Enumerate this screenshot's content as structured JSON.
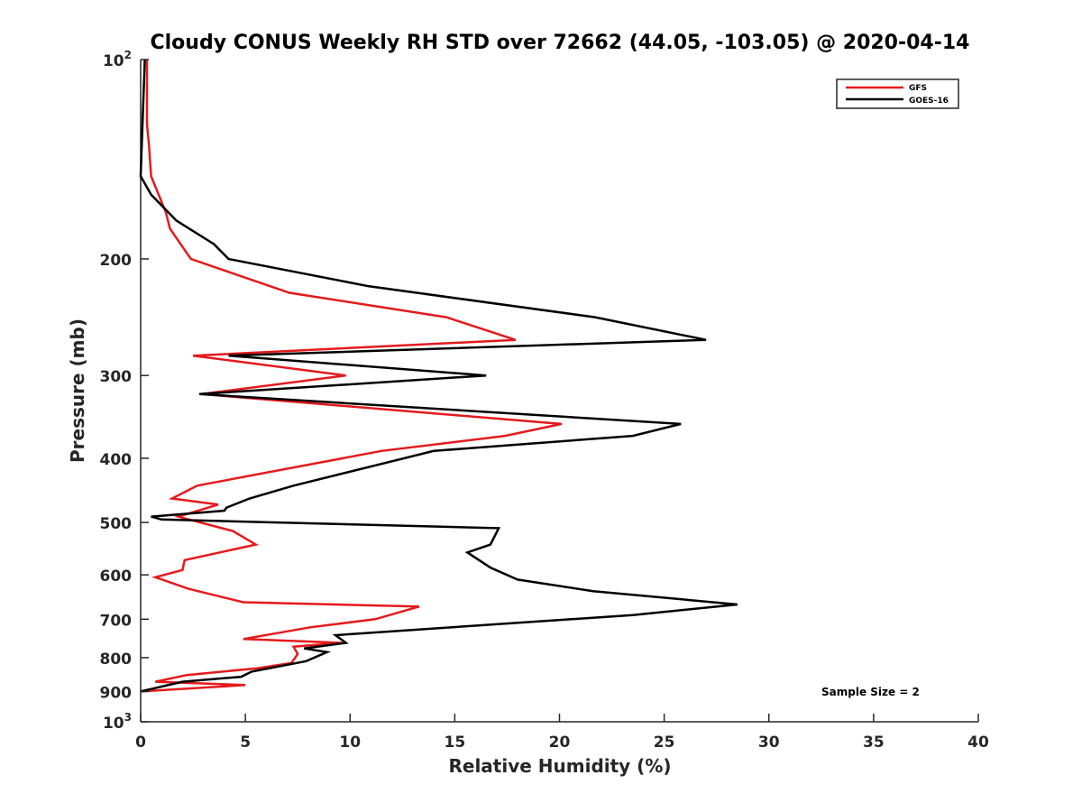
{
  "chart_data": {
    "type": "line",
    "title": "Cloudy CONUS Weekly RH STD over 72662 (44.05, -103.05) @ 2020-04-14",
    "xlabel": "Relative Humidity (%)",
    "ylabel": "Pressure (mb)",
    "xlim": [
      0,
      40
    ],
    "ylim": [
      100,
      1000
    ],
    "y_scale": "log",
    "y_reversed": true,
    "x_ticks": [
      "0",
      "5",
      "10",
      "15",
      "20",
      "25",
      "30",
      "35",
      "40"
    ],
    "y_ticks": [
      {
        "value": 100,
        "label": "10",
        "sup": "2"
      },
      {
        "value": 200,
        "label": "200",
        "sup": ""
      },
      {
        "value": 300,
        "label": "300",
        "sup": ""
      },
      {
        "value": 400,
        "label": "400",
        "sup": ""
      },
      {
        "value": 500,
        "label": "500",
        "sup": ""
      },
      {
        "value": 600,
        "label": "600",
        "sup": ""
      },
      {
        "value": 700,
        "label": "700",
        "sup": ""
      },
      {
        "value": 800,
        "label": "800",
        "sup": ""
      },
      {
        "value": 900,
        "label": "900",
        "sup": ""
      },
      {
        "value": 1000,
        "label": "10",
        "sup": "3"
      }
    ],
    "legend_position": "top-right",
    "grid": false,
    "annotation": "Sample Size = 2",
    "series": [
      {
        "name": "GFS",
        "color": "#e41a1c",
        "points": [
          [
            0.3,
            100
          ],
          [
            0.3,
            125
          ],
          [
            0.4,
            135
          ],
          [
            0.5,
            150
          ],
          [
            1.2,
            170
          ],
          [
            1.4,
            180
          ],
          [
            2.4,
            200
          ],
          [
            7.1,
            225
          ],
          [
            14.6,
            245
          ],
          [
            17.9,
            265
          ],
          [
            2.5,
            280
          ],
          [
            9.8,
            300
          ],
          [
            2.9,
            320
          ],
          [
            20.1,
            355
          ],
          [
            17.4,
            370
          ],
          [
            11.5,
            390
          ],
          [
            2.7,
            440
          ],
          [
            1.5,
            460
          ],
          [
            3.7,
            470
          ],
          [
            1.8,
            490
          ],
          [
            2.3,
            495
          ],
          [
            4.4,
            515
          ],
          [
            5.5,
            540
          ],
          [
            2.1,
            570
          ],
          [
            2.0,
            590
          ],
          [
            0.7,
            605
          ],
          [
            2.3,
            630
          ],
          [
            4.9,
            660
          ],
          [
            13.3,
            670
          ],
          [
            11.2,
            700
          ],
          [
            8.1,
            720
          ],
          [
            4.9,
            750
          ],
          [
            9.6,
            760
          ],
          [
            7.3,
            770
          ],
          [
            7.5,
            790
          ],
          [
            7.2,
            815
          ],
          [
            5.6,
            830
          ],
          [
            2.2,
            850
          ],
          [
            0.7,
            870
          ],
          [
            5.0,
            880
          ],
          [
            0.0,
            900
          ]
        ]
      },
      {
        "name": "GOES-16",
        "color": "#000000",
        "points": [
          [
            0.2,
            100
          ],
          [
            0.0,
            150
          ],
          [
            0.5,
            160
          ],
          [
            1.7,
            175
          ],
          [
            3.5,
            190
          ],
          [
            4.2,
            200
          ],
          [
            10.9,
            220
          ],
          [
            21.7,
            245
          ],
          [
            27.0,
            265
          ],
          [
            4.2,
            280
          ],
          [
            16.5,
            300
          ],
          [
            2.8,
            320
          ],
          [
            25.8,
            355
          ],
          [
            23.5,
            370
          ],
          [
            14.0,
            390
          ],
          [
            7.3,
            440
          ],
          [
            5.2,
            460
          ],
          [
            4.1,
            475
          ],
          [
            4.0,
            480
          ],
          [
            0.5,
            490
          ],
          [
            1.0,
            495
          ],
          [
            17.1,
            510
          ],
          [
            16.7,
            540
          ],
          [
            15.6,
            555
          ],
          [
            16.7,
            585
          ],
          [
            18.0,
            610
          ],
          [
            21.6,
            635
          ],
          [
            28.5,
            665
          ],
          [
            23.5,
            690
          ],
          [
            9.3,
            740
          ],
          [
            9.8,
            760
          ],
          [
            7.8,
            775
          ],
          [
            8.9,
            785
          ],
          [
            7.9,
            810
          ],
          [
            5.3,
            840
          ],
          [
            4.8,
            855
          ],
          [
            2.0,
            870
          ],
          [
            0.0,
            900
          ]
        ]
      }
    ]
  }
}
